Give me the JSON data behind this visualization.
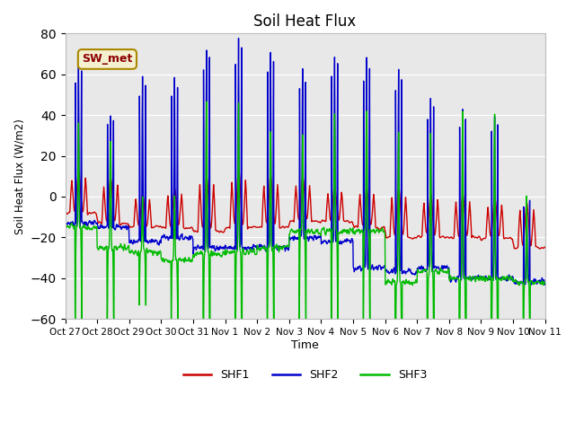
{
  "title": "Soil Heat Flux",
  "ylabel": "Soil Heat Flux (W/m2)",
  "xlabel": "Time",
  "ylim": [
    -60,
    80
  ],
  "yticks": [
    -60,
    -40,
    -20,
    0,
    20,
    40,
    60,
    80
  ],
  "xtick_labels": [
    "Oct 27",
    "Oct 28",
    "Oct 29",
    "Oct 30",
    "Oct 31",
    "Nov 1",
    "Nov 2",
    "Nov 3",
    "Nov 4",
    "Nov 5",
    "Nov 6",
    "Nov 7",
    "Nov 8",
    "Nov 9",
    "Nov 10",
    "Nov 11"
  ],
  "legend_label": "SW_met",
  "line_colors": {
    "SHF1": "#cc0000",
    "SHF2": "#0000cc",
    "SHF3": "#00bb00"
  },
  "line_width": 1.0,
  "bg_color": "#e8e8e8",
  "fig_bg": "#ffffff",
  "n_days": 15,
  "pts_per_day": 96,
  "shf2_peaks": [
    65,
    41,
    59,
    58,
    73,
    78,
    71,
    62,
    69,
    68,
    63,
    48,
    43,
    40,
    0
  ],
  "shf3_peaks": [
    37,
    27,
    0,
    0,
    46,
    46,
    32,
    31,
    41,
    42,
    30,
    30,
    42,
    41,
    0
  ],
  "shf1_peaks": [
    13,
    10,
    2,
    5,
    11,
    14,
    11,
    10,
    5,
    5,
    5,
    2,
    2,
    0,
    -2
  ],
  "shf2_night": [
    -13,
    -15,
    -22,
    -20,
    -25,
    -25,
    -25,
    -20,
    -22,
    -35,
    -37,
    -35,
    -40,
    -40,
    -42
  ],
  "shf3_night": [
    -15,
    -25,
    -27,
    -31,
    -28,
    -27,
    -25,
    -17,
    -17,
    -17,
    -42,
    -37,
    -40,
    -40,
    -42
  ],
  "shf1_night": [
    -8,
    -13,
    -15,
    -15,
    -17,
    -15,
    -15,
    -12,
    -12,
    -15,
    -20,
    -20,
    -20,
    -20,
    -25
  ]
}
